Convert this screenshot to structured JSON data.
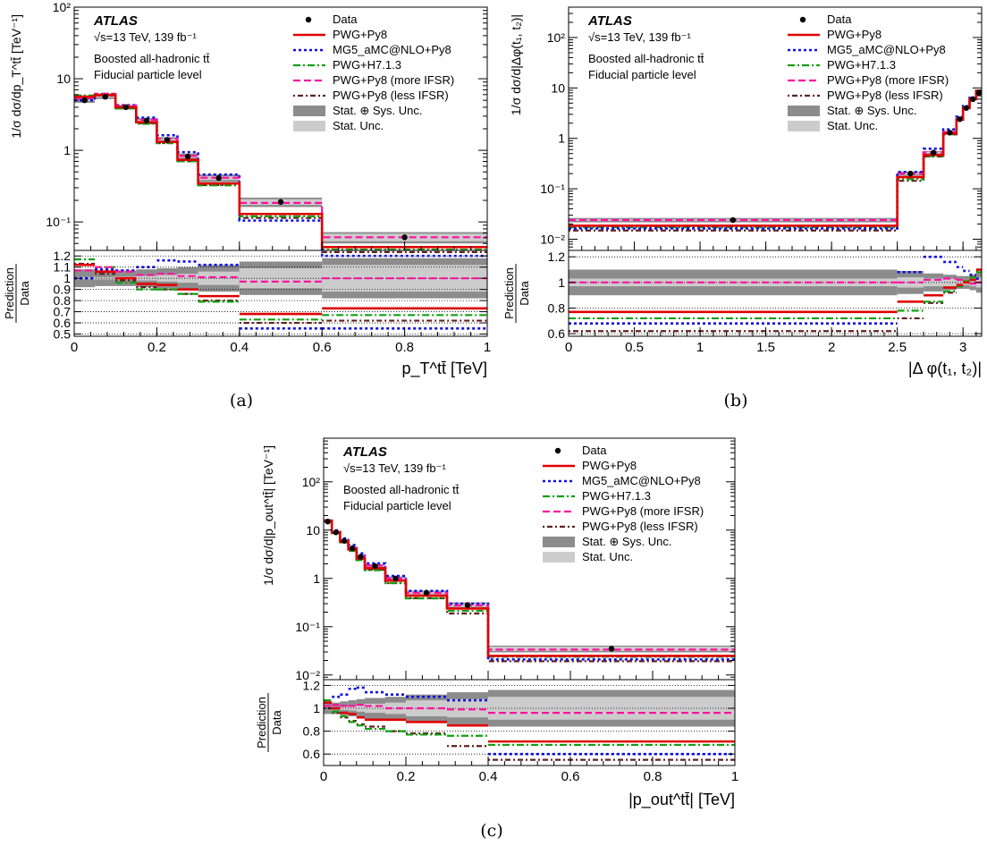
{
  "figure": {
    "experiment": "ATLAS",
    "energy_lumi": "√s=13 TeV, 139 fb⁻¹",
    "analysis": "Boosted all-hadronic tt̄",
    "level": "Fiducial particle level"
  },
  "legend": [
    {
      "key": "data",
      "label": "Data",
      "color": "#000000"
    },
    {
      "key": "pwg_py8",
      "label": "PWG+Py8",
      "color": "#e00000"
    },
    {
      "key": "mg5",
      "label": "MG5_aMC@NLO+Py8",
      "color": "#1010e0"
    },
    {
      "key": "h7",
      "label": "PWG+H7.1.3",
      "color": "#10a010"
    },
    {
      "key": "more",
      "label": "PWG+Py8 (more IFSR)",
      "color": "#ff10a0"
    },
    {
      "key": "less",
      "label": "PWG+Py8 (less IFSR)",
      "color": "#602020"
    },
    {
      "key": "syst",
      "label": "Stat. ⊕ Sys. Unc.",
      "color": "#8c8c8c"
    },
    {
      "key": "stat",
      "label": "Stat. Unc.",
      "color": "#cccccc"
    }
  ],
  "ratio_ylabel": [
    "Prediction",
    "Data"
  ],
  "chart_data": [
    {
      "id": "a",
      "caption": "(a)",
      "type": "line",
      "ylabel": "1/σ dσ/dp_T^tt̄ [TeV⁻¹]",
      "xlabel": "p_T^tt̄ [TeV]",
      "yscale": "log",
      "xlim": [
        0,
        1
      ],
      "ylim": [
        0.04,
        100
      ],
      "ratio_ylim": [
        0.48,
        1.25
      ],
      "xticks": [
        0,
        0.2,
        0.4,
        0.6,
        0.8,
        1
      ],
      "xtick_labels": [
        "0",
        "0.2",
        "0.4",
        "0.6",
        "0.8",
        "1"
      ],
      "yticks": [
        0.1,
        1,
        10,
        100
      ],
      "ytick_labels": [
        "10⁻¹",
        "1",
        "10",
        "10²"
      ],
      "ratio_yticks": [
        0.5,
        0.6,
        0.7,
        0.8,
        0.9,
        1,
        1.1,
        1.2
      ],
      "ratio_ytick_labels": [
        "0.5",
        "0.6",
        "0.7",
        "0.8",
        "0.9",
        "1",
        "1.1",
        "1.2"
      ],
      "edges": [
        0,
        0.05,
        0.1,
        0.15,
        0.2,
        0.25,
        0.3,
        0.4,
        0.6,
        1.0
      ],
      "data": [
        5.0,
        5.6,
        4.0,
        2.6,
        1.4,
        0.82,
        0.41,
        0.19,
        0.061
      ],
      "syst_unc": [
        0.08,
        0.07,
        0.07,
        0.08,
        0.09,
        0.1,
        0.12,
        0.15,
        0.18
      ],
      "stat_unc": [
        0.01,
        0.01,
        0.015,
        0.02,
        0.03,
        0.04,
        0.06,
        0.09,
        0.12
      ],
      "ratios": {
        "pwg_py8": [
          1.12,
          1.06,
          1.0,
          0.95,
          0.94,
          0.9,
          0.84,
          0.68,
          0.73
        ],
        "mg5": [
          1.0,
          1.08,
          1.07,
          1.1,
          1.16,
          1.15,
          1.12,
          0.55,
          0.55
        ],
        "h7": [
          1.17,
          1.1,
          0.96,
          0.9,
          0.9,
          0.86,
          0.79,
          0.63,
          0.67
        ],
        "more": [
          1.07,
          1.1,
          1.06,
          1.03,
          1.04,
          1.02,
          1.01,
          0.97,
          1.0
        ],
        "less": [
          1.13,
          1.04,
          0.98,
          0.92,
          0.9,
          0.86,
          0.8,
          0.6,
          0.62
        ]
      }
    },
    {
      "id": "b",
      "caption": "(b)",
      "type": "line",
      "ylabel": "1/σ dσ/d|Δφ(t₁, t₂)|",
      "xlabel": "|Δ φ(t₁, t₂)|",
      "yscale": "log",
      "xlim": [
        0,
        3.1416
      ],
      "ylim": [
        0.006,
        400
      ],
      "ratio_ylim": [
        0.58,
        1.25
      ],
      "xticks": [
        0,
        0.5,
        1,
        1.5,
        2,
        2.5,
        3
      ],
      "xtick_labels": [
        "0",
        "0.5",
        "1",
        "1.5",
        "2",
        "2.5",
        "3"
      ],
      "yticks": [
        0.01,
        0.1,
        1,
        10,
        100
      ],
      "ytick_labels": [
        "10⁻²",
        "10⁻¹",
        "1",
        "10",
        "10²"
      ],
      "ratio_yticks": [
        0.6,
        0.8,
        1,
        1.2
      ],
      "ratio_ytick_labels": [
        "0.6",
        "0.8",
        "1",
        "1.2"
      ],
      "edges": [
        0,
        2.5,
        2.7,
        2.85,
        2.95,
        3.0,
        3.05,
        3.1,
        3.1416
      ],
      "data": [
        0.024,
        0.2,
        0.52,
        1.3,
        2.4,
        4.0,
        6.0,
        8.0
      ],
      "syst_unc": [
        0.1,
        0.09,
        0.07,
        0.06,
        0.05,
        0.05,
        0.06,
        0.08
      ],
      "stat_unc": [
        0.03,
        0.04,
        0.03,
        0.03,
        0.02,
        0.02,
        0.03,
        0.04
      ],
      "ratios": {
        "pwg_py8": [
          0.77,
          0.85,
          0.9,
          0.96,
          0.98,
          1.0,
          1.02,
          1.1
        ],
        "mg5": [
          0.68,
          1.08,
          1.2,
          1.16,
          1.12,
          1.09,
          1.06,
          1.03
        ],
        "h7": [
          0.72,
          0.78,
          0.85,
          0.93,
          0.97,
          1.01,
          1.04,
          1.08
        ],
        "more": [
          1.0,
          1.0,
          1.02,
          1.03,
          1.02,
          1.0,
          0.99,
          1.0
        ],
        "less": [
          0.62,
          0.72,
          0.84,
          0.92,
          0.97,
          1.01,
          1.05,
          1.09
        ]
      }
    },
    {
      "id": "c",
      "caption": "(c)",
      "type": "line",
      "ylabel": "1/σ dσ/d|p_out^tt̄| [TeV⁻¹]",
      "xlabel": "|p_out^tt̄| [TeV]",
      "yscale": "log",
      "xlim": [
        0,
        1
      ],
      "ylim": [
        0.008,
        800
      ],
      "ratio_ylim": [
        0.5,
        1.25
      ],
      "xticks": [
        0,
        0.2,
        0.4,
        0.6,
        0.8,
        1
      ],
      "xtick_labels": [
        "0",
        "0.2",
        "0.4",
        "0.6",
        "0.8",
        "1"
      ],
      "yticks": [
        0.01,
        0.1,
        1,
        10,
        100
      ],
      "ytick_labels": [
        "10⁻²",
        "10⁻¹",
        "1",
        "10",
        "10²"
      ],
      "ratio_yticks": [
        0.6,
        0.8,
        1,
        1.2
      ],
      "ratio_ytick_labels": [
        "0.6",
        "0.8",
        "1",
        "1.2"
      ],
      "edges": [
        0,
        0.02,
        0.04,
        0.06,
        0.08,
        0.1,
        0.15,
        0.2,
        0.3,
        0.4,
        1.0
      ],
      "data": [
        15,
        9,
        6,
        4.2,
        2.8,
        1.8,
        1.0,
        0.5,
        0.28,
        0.035
      ],
      "syst_unc": [
        0.05,
        0.05,
        0.06,
        0.07,
        0.08,
        0.09,
        0.1,
        0.12,
        0.14,
        0.16
      ],
      "stat_unc": [
        0.01,
        0.01,
        0.015,
        0.02,
        0.03,
        0.04,
        0.05,
        0.07,
        0.08,
        0.1
      ],
      "ratios": {
        "pwg_py8": [
          1.05,
          1.0,
          0.96,
          0.95,
          0.92,
          0.9,
          0.9,
          0.88,
          0.85,
          0.71
        ],
        "mg5": [
          1.05,
          1.1,
          1.12,
          1.17,
          1.18,
          1.14,
          1.12,
          1.1,
          1.07,
          0.6
        ],
        "h7": [
          1.07,
          0.97,
          0.93,
          0.88,
          0.85,
          0.82,
          0.8,
          0.77,
          0.76,
          0.68
        ],
        "more": [
          1.02,
          1.03,
          1.02,
          1.02,
          1.03,
          1.02,
          1.0,
          1.0,
          0.99,
          0.96
        ],
        "less": [
          1.0,
          0.96,
          0.92,
          0.89,
          0.86,
          0.84,
          0.8,
          0.78,
          0.67,
          0.55
        ]
      }
    }
  ]
}
